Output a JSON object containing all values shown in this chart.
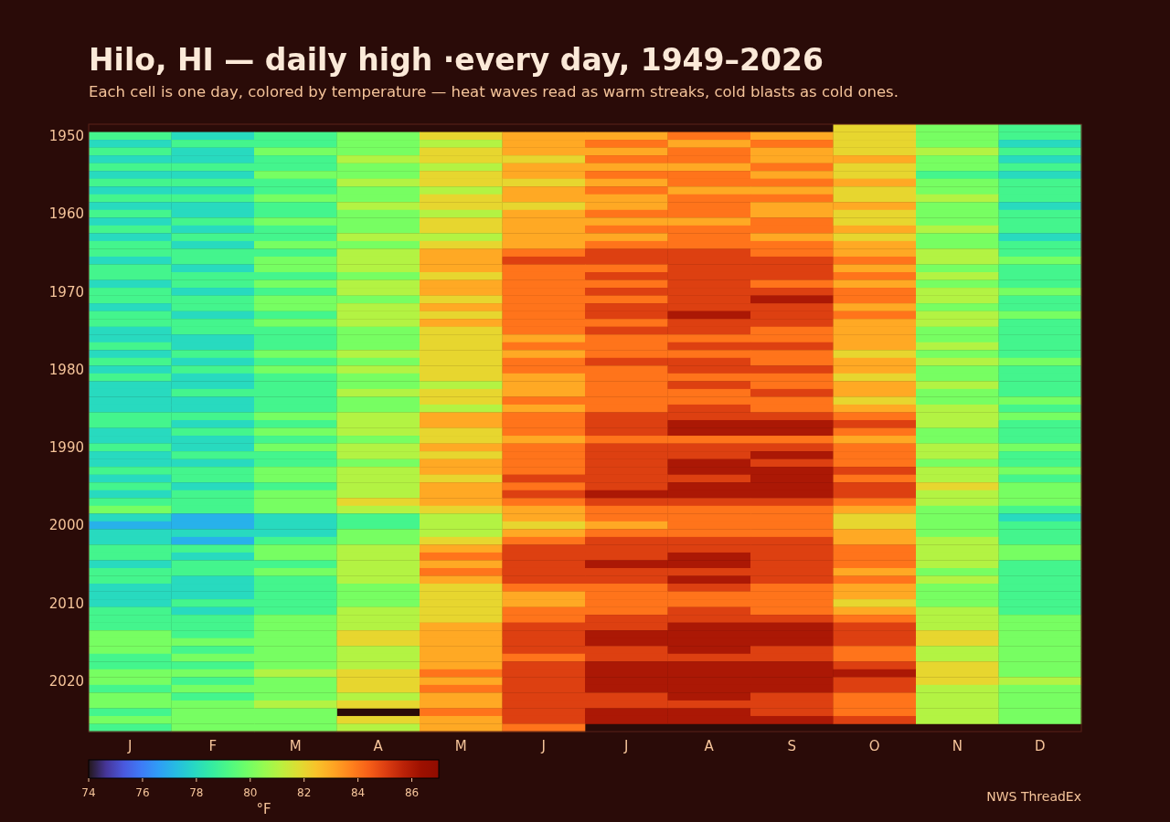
{
  "chart_data": {
    "type": "heatmap",
    "title": "Hilo, HI — daily high ·every day, 1949–2026",
    "subtitle": "Each cell is one day, colored by temperature — heat waves read as warm streaks, cold blasts as cold ones.",
    "categories": [
      "J",
      "F",
      "M",
      "A",
      "M",
      "J",
      "J",
      "A",
      "S",
      "O",
      "N",
      "D"
    ],
    "y_categories": [
      null,
      "1950",
      null,
      null,
      null,
      null,
      null,
      null,
      null,
      null,
      null,
      "1960",
      null,
      null,
      null,
      null,
      null,
      null,
      null,
      null,
      null,
      "1970",
      null,
      null,
      null,
      null,
      null,
      null,
      null,
      null,
      null,
      "1980",
      null,
      null,
      null,
      null,
      null,
      null,
      null,
      null,
      null,
      "1990",
      null,
      null,
      null,
      null,
      null,
      null,
      null,
      null,
      null,
      "2000",
      null,
      null,
      null,
      null,
      null,
      null,
      null,
      null,
      null,
      "2010",
      null,
      null,
      null,
      null,
      null,
      null,
      null,
      null,
      null,
      "2020",
      null,
      null,
      null,
      null,
      null,
      null
    ],
    "cells": [
      [
        null,
        null,
        null,
        null,
        null,
        null,
        null,
        null,
        null,
        82,
        80,
        79
      ],
      [
        79,
        78,
        79,
        80,
        82,
        83,
        83,
        84,
        83,
        82,
        80,
        79
      ],
      [
        78,
        79,
        79,
        80,
        81,
        83,
        84,
        83,
        84,
        82,
        80,
        78
      ],
      [
        79,
        78,
        80,
        80,
        82,
        83,
        83,
        84,
        83,
        82,
        81,
        79
      ],
      [
        78,
        78,
        79,
        81,
        82,
        82,
        84,
        84,
        83,
        83,
        80,
        78
      ],
      [
        79,
        79,
        79,
        80,
        81,
        83,
        83,
        83,
        84,
        82,
        80,
        79
      ],
      [
        78,
        78,
        80,
        80,
        82,
        83,
        84,
        84,
        83,
        82,
        79,
        78
      ],
      [
        79,
        79,
        79,
        81,
        82,
        82,
        83,
        84,
        84,
        83,
        80,
        79
      ],
      [
        78,
        78,
        79,
        80,
        81,
        83,
        84,
        83,
        83,
        82,
        80,
        79
      ],
      [
        79,
        79,
        80,
        80,
        82,
        83,
        83,
        84,
        84,
        82,
        81,
        79
      ],
      [
        78,
        78,
        79,
        81,
        82,
        82,
        83,
        84,
        83,
        83,
        80,
        78
      ],
      [
        79,
        78,
        79,
        80,
        81,
        83,
        84,
        84,
        83,
        82,
        80,
        79
      ],
      [
        78,
        79,
        80,
        80,
        82,
        83,
        83,
        83,
        84,
        82,
        80,
        79
      ],
      [
        79,
        78,
        79,
        80,
        82,
        83,
        84,
        84,
        84,
        83,
        81,
        79
      ],
      [
        78,
        79,
        79,
        81,
        81,
        83,
        83,
        84,
        83,
        82,
        80,
        78
      ],
      [
        79,
        78,
        80,
        80,
        82,
        83,
        84,
        84,
        84,
        83,
        80,
        79
      ],
      [
        79,
        79,
        79,
        81,
        83,
        84,
        85,
        85,
        84,
        83,
        81,
        79
      ],
      [
        78,
        79,
        80,
        81,
        83,
        85,
        85,
        85,
        85,
        84,
        81,
        80
      ],
      [
        79,
        78,
        80,
        81,
        83,
        84,
        84,
        85,
        85,
        83,
        80,
        79
      ],
      [
        79,
        79,
        79,
        80,
        82,
        84,
        85,
        85,
        85,
        84,
        81,
        79
      ],
      [
        78,
        79,
        80,
        81,
        83,
        84,
        84,
        85,
        84,
        83,
        80,
        79
      ],
      [
        79,
        78,
        79,
        81,
        83,
        84,
        85,
        85,
        85,
        84,
        81,
        80
      ],
      [
        79,
        79,
        80,
        80,
        82,
        84,
        84,
        85,
        86,
        84,
        81,
        79
      ],
      [
        78,
        79,
        80,
        81,
        83,
        84,
        85,
        85,
        85,
        83,
        80,
        79
      ],
      [
        79,
        78,
        79,
        81,
        82,
        84,
        85,
        86,
        85,
        84,
        81,
        80
      ],
      [
        79,
        79,
        80,
        81,
        83,
        84,
        84,
        85,
        85,
        83,
        81,
        79
      ],
      [
        78,
        79,
        79,
        80,
        82,
        84,
        85,
        85,
        84,
        83,
        80,
        79
      ],
      [
        78,
        78,
        79,
        80,
        82,
        83,
        84,
        84,
        84,
        83,
        80,
        79
      ],
      [
        79,
        78,
        79,
        80,
        82,
        84,
        84,
        85,
        85,
        83,
        81,
        79
      ],
      [
        78,
        79,
        80,
        81,
        82,
        83,
        84,
        84,
        84,
        82,
        80,
        79
      ],
      [
        79,
        78,
        79,
        80,
        82,
        84,
        85,
        85,
        84,
        83,
        81,
        80
      ],
      [
        78,
        79,
        80,
        81,
        82,
        84,
        84,
        85,
        85,
        83,
        80,
        79
      ],
      [
        79,
        78,
        79,
        80,
        82,
        83,
        84,
        84,
        84,
        82,
        80,
        79
      ],
      [
        78,
        78,
        79,
        80,
        81,
        83,
        84,
        85,
        84,
        83,
        81,
        79
      ],
      [
        78,
        79,
        79,
        81,
        82,
        83,
        84,
        84,
        85,
        83,
        80,
        79
      ],
      [
        78,
        78,
        79,
        80,
        82,
        84,
        84,
        84,
        84,
        82,
        80,
        80
      ],
      [
        78,
        78,
        79,
        80,
        81,
        83,
        84,
        85,
        84,
        83,
        81,
        79
      ],
      [
        79,
        79,
        80,
        81,
        83,
        84,
        85,
        85,
        85,
        84,
        81,
        80
      ],
      [
        79,
        78,
        79,
        81,
        83,
        84,
        85,
        86,
        86,
        85,
        81,
        79
      ],
      [
        78,
        79,
        80,
        81,
        82,
        84,
        85,
        86,
        86,
        84,
        80,
        79
      ],
      [
        78,
        78,
        79,
        80,
        82,
        83,
        84,
        84,
        84,
        83,
        80,
        79
      ],
      [
        79,
        78,
        80,
        81,
        83,
        84,
        85,
        85,
        85,
        84,
        81,
        80
      ],
      [
        78,
        79,
        79,
        81,
        82,
        84,
        85,
        85,
        86,
        84,
        81,
        79
      ],
      [
        78,
        78,
        79,
        80,
        83,
        84,
        85,
        86,
        85,
        84,
        80,
        79
      ],
      [
        79,
        79,
        80,
        81,
        83,
        84,
        85,
        86,
        86,
        85,
        81,
        80
      ],
      [
        78,
        79,
        80,
        81,
        82,
        85,
        85,
        85,
        86,
        84,
        81,
        79
      ],
      [
        79,
        78,
        79,
        81,
        83,
        84,
        85,
        86,
        86,
        85,
        82,
        80
      ],
      [
        78,
        79,
        80,
        81,
        83,
        85,
        86,
        86,
        86,
        85,
        81,
        80
      ],
      [
        79,
        79,
        80,
        82,
        83,
        84,
        85,
        85,
        85,
        84,
        81,
        80
      ],
      [
        80,
        79,
        80,
        81,
        82,
        83,
        84,
        84,
        84,
        83,
        80,
        79
      ],
      [
        78,
        77,
        78,
        79,
        81,
        83,
        84,
        84,
        84,
        82,
        80,
        78
      ],
      [
        77,
        77,
        78,
        79,
        81,
        82,
        83,
        84,
        84,
        82,
        80,
        79
      ],
      [
        78,
        78,
        78,
        80,
        81,
        83,
        84,
        84,
        84,
        83,
        80,
        79
      ],
      [
        78,
        77,
        79,
        80,
        82,
        84,
        85,
        85,
        85,
        83,
        81,
        79
      ],
      [
        79,
        79,
        80,
        81,
        83,
        85,
        85,
        85,
        85,
        84,
        81,
        80
      ],
      [
        79,
        78,
        80,
        81,
        84,
        85,
        85,
        86,
        85,
        84,
        81,
        80
      ],
      [
        78,
        79,
        79,
        81,
        83,
        85,
        86,
        86,
        85,
        84,
        81,
        79
      ],
      [
        79,
        79,
        80,
        81,
        84,
        85,
        85,
        85,
        85,
        83,
        80,
        79
      ],
      [
        79,
        78,
        79,
        81,
        83,
        85,
        85,
        86,
        85,
        84,
        81,
        79
      ],
      [
        78,
        78,
        79,
        80,
        82,
        84,
        84,
        85,
        84,
        83,
        80,
        79
      ],
      [
        78,
        78,
        79,
        80,
        82,
        83,
        84,
        84,
        84,
        83,
        80,
        79
      ],
      [
        78,
        79,
        79,
        80,
        82,
        83,
        84,
        84,
        84,
        82,
        80,
        79
      ],
      [
        79,
        78,
        79,
        81,
        82,
        84,
        84,
        85,
        84,
        83,
        81,
        79
      ],
      [
        79,
        79,
        80,
        81,
        82,
        84,
        85,
        85,
        85,
        84,
        81,
        80
      ],
      [
        79,
        79,
        80,
        81,
        83,
        85,
        85,
        86,
        86,
        85,
        81,
        80
      ],
      [
        80,
        79,
        80,
        82,
        83,
        85,
        86,
        86,
        86,
        85,
        82,
        80
      ],
      [
        80,
        80,
        80,
        82,
        83,
        85,
        86,
        86,
        86,
        85,
        82,
        80
      ],
      [
        80,
        79,
        80,
        81,
        83,
        85,
        85,
        86,
        85,
        84,
        81,
        80
      ],
      [
        79,
        80,
        80,
        81,
        83,
        84,
        85,
        85,
        85,
        84,
        81,
        80
      ],
      [
        79,
        79,
        80,
        81,
        83,
        85,
        86,
        86,
        86,
        85,
        82,
        80
      ],
      [
        80,
        80,
        81,
        82,
        84,
        85,
        86,
        86,
        86,
        86,
        82,
        80
      ],
      [
        80,
        79,
        80,
        82,
        83,
        85,
        86,
        86,
        86,
        85,
        82,
        81
      ],
      [
        79,
        80,
        80,
        82,
        84,
        85,
        86,
        86,
        86,
        85,
        81,
        80
      ],
      [
        80,
        79,
        80,
        81,
        83,
        85,
        85,
        86,
        85,
        84,
        81,
        80
      ],
      [
        80,
        80,
        81,
        82,
        83,
        85,
        85,
        85,
        85,
        84,
        81,
        80
      ],
      [
        79,
        80,
        80,
        null,
        84,
        85,
        86,
        86,
        85,
        84,
        81,
        80
      ],
      [
        80,
        80,
        80,
        82,
        83,
        85,
        86,
        86,
        86,
        85,
        81,
        80
      ],
      [
        79,
        80,
        80,
        81,
        83,
        84,
        null,
        null,
        null,
        null,
        null,
        null
      ]
    ],
    "clim": [
      74,
      87
    ],
    "cticks": [
      74,
      76,
      78,
      80,
      82,
      84,
      86
    ],
    "clabel": "°F",
    "annotations": [
      "NWS ThreadEx"
    ]
  }
}
